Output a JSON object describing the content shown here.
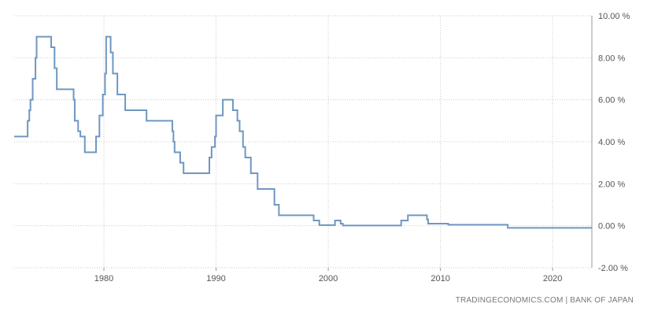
{
  "source": "TRADINGECONOMICS.COM | BANK OF JAPAN",
  "colors": {
    "line": "#6f97c2",
    "grid": "#c9c9c9",
    "axis": "#999999",
    "text": "#555555"
  },
  "chart_data": {
    "type": "line",
    "title": "",
    "xlabel": "",
    "ylabel": "",
    "xlim": [
      1972.0,
      2023.5
    ],
    "ylim": [
      -2,
      10
    ],
    "grid": "dotted",
    "legend": "none",
    "x_ticks": [
      1980,
      1990,
      2000,
      2010,
      2020
    ],
    "x_tick_labels": [
      "1980",
      "1990",
      "2000",
      "2010",
      "2020"
    ],
    "y_ticks": [
      10,
      8,
      6,
      4,
      2,
      0,
      -2
    ],
    "y_tick_labels": [
      "10.00 %",
      "8.00 %",
      "6.00 %",
      "4.00 %",
      "2.00 %",
      "0.00 %",
      "-2.00 %"
    ],
    "series": [
      {
        "step": true,
        "points": [
          [
            1972.0,
            4.25
          ],
          [
            1973.0,
            4.25
          ],
          [
            1973.2,
            5.0
          ],
          [
            1973.35,
            5.5
          ],
          [
            1973.45,
            6.0
          ],
          [
            1973.65,
            7.0
          ],
          [
            1973.9,
            8.0
          ],
          [
            1974.0,
            9.0
          ],
          [
            1975.3,
            8.5
          ],
          [
            1975.6,
            7.5
          ],
          [
            1975.8,
            6.5
          ],
          [
            1977.3,
            6.0
          ],
          [
            1977.4,
            5.0
          ],
          [
            1977.7,
            4.5
          ],
          [
            1977.9,
            4.25
          ],
          [
            1978.3,
            3.5
          ],
          [
            1979.3,
            4.25
          ],
          [
            1979.6,
            5.25
          ],
          [
            1979.9,
            6.25
          ],
          [
            1980.1,
            7.25
          ],
          [
            1980.2,
            9.0
          ],
          [
            1980.6,
            8.25
          ],
          [
            1980.8,
            7.25
          ],
          [
            1981.2,
            6.25
          ],
          [
            1981.9,
            5.5
          ],
          [
            1983.8,
            5.0
          ],
          [
            1986.1,
            4.5
          ],
          [
            1986.2,
            4.0
          ],
          [
            1986.3,
            3.5
          ],
          [
            1986.8,
            3.0
          ],
          [
            1987.1,
            2.5
          ],
          [
            1989.4,
            3.25
          ],
          [
            1989.6,
            3.75
          ],
          [
            1989.9,
            4.25
          ],
          [
            1990.0,
            5.25
          ],
          [
            1990.6,
            6.0
          ],
          [
            1991.5,
            5.5
          ],
          [
            1991.9,
            5.0
          ],
          [
            1992.1,
            4.5
          ],
          [
            1992.4,
            3.75
          ],
          [
            1992.6,
            3.25
          ],
          [
            1993.1,
            2.5
          ],
          [
            1993.7,
            1.75
          ],
          [
            1995.2,
            1.0
          ],
          [
            1995.6,
            0.5
          ],
          [
            1998.7,
            0.25
          ],
          [
            1999.2,
            0.03
          ],
          [
            2000.6,
            0.25
          ],
          [
            2001.1,
            0.1
          ],
          [
            2001.3,
            0.01
          ],
          [
            2006.5,
            0.25
          ],
          [
            2007.1,
            0.5
          ],
          [
            2008.8,
            0.3
          ],
          [
            2008.9,
            0.1
          ],
          [
            2010.7,
            0.05
          ],
          [
            2016.0,
            -0.1
          ],
          [
            2023.5,
            -0.1
          ]
        ]
      }
    ]
  }
}
